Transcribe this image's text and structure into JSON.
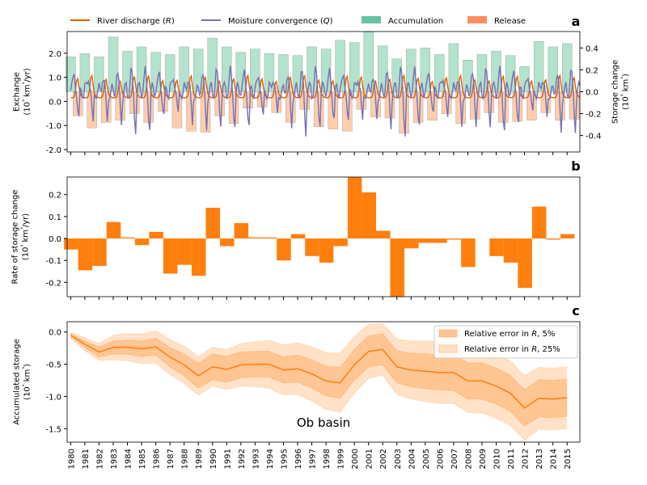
{
  "chart_data": [
    {
      "panel_letter": "a",
      "type": "line",
      "ylabel": "Exchange\n(10³ km³/yr)",
      "ylim": [
        -2.1,
        2.9
      ],
      "yticks": [
        "-2.0",
        "-1.0",
        "0.0",
        "1.0",
        "2.0"
      ],
      "y2label": "Storage change\n(10³ km³)",
      "y2lim": [
        -0.55,
        0.55
      ],
      "y2ticks": [
        "-0.4",
        "-0.2",
        "0.0",
        "0.2",
        "0.4"
      ],
      "legend": [
        {
          "label": "River discharge (R)",
          "kind": "line",
          "color": "#d95f02"
        },
        {
          "label": "Moisture convergence (Q)",
          "kind": "line",
          "color": "#7570b3"
        },
        {
          "label": "Accumulation",
          "kind": "patch",
          "color": "#66c2a5"
        },
        {
          "label": "Release",
          "kind": "patch",
          "color": "#fc8d62"
        }
      ],
      "series": [
        {
          "name": "River discharge (R)",
          "note": "monthly seasonal cycle, annual peak ~1.05, winter ~0.15"
        },
        {
          "name": "Moisture convergence (Q)",
          "note": "monthly seasonal cycle, spring peak ~1.3, summer minimum ~-1.5"
        },
        {
          "name": "Accumulation",
          "axis": "right",
          "values": [
            0.32,
            0.35,
            0.32,
            0.5,
            0.37,
            0.41,
            0.36,
            0.34,
            0.41,
            0.39,
            0.49,
            0.41,
            0.36,
            0.39,
            0.35,
            0.34,
            0.33,
            0.41,
            0.39,
            0.47,
            0.45,
            0.55,
            0.42,
            0.3,
            0.39,
            0.4,
            0.34,
            0.44,
            0.29,
            0.34,
            0.37,
            0.33,
            0.23,
            0.46,
            0.41,
            0.44
          ]
        },
        {
          "name": "Release",
          "axis": "right",
          "values": [
            -0.22,
            -0.33,
            -0.28,
            -0.26,
            -0.2,
            -0.28,
            -0.18,
            -0.33,
            -0.36,
            -0.37,
            -0.22,
            -0.29,
            -0.15,
            -0.14,
            -0.19,
            -0.28,
            -0.16,
            -0.32,
            -0.34,
            -0.36,
            -0.16,
            -0.23,
            -0.24,
            -0.38,
            -0.28,
            -0.26,
            -0.2,
            -0.29,
            -0.25,
            -0.19,
            -0.28,
            -0.27,
            -0.26,
            -0.19,
            -0.26,
            -0.25
          ]
        }
      ]
    },
    {
      "panel_letter": "b",
      "type": "bar",
      "ylabel": "Rate of storage change\n(10³ km³/yr)",
      "ylim": [
        -0.265,
        0.28
      ],
      "yticks": [
        "-0.2",
        "-0.1",
        "0.0",
        "0.1",
        "0.2"
      ],
      "color": "#ff7f0e",
      "categories": [
        1980,
        1981,
        1982,
        1983,
        1984,
        1985,
        1986,
        1987,
        1988,
        1989,
        1990,
        1991,
        1992,
        1993,
        1994,
        1995,
        1996,
        1997,
        1998,
        1999,
        2000,
        2001,
        2002,
        2003,
        2004,
        2005,
        2006,
        2007,
        2008,
        2009,
        2010,
        2011,
        2012,
        2013,
        2014,
        2015
      ],
      "values": [
        -0.05,
        -0.145,
        -0.125,
        0.075,
        0.005,
        -0.03,
        0.03,
        -0.16,
        -0.12,
        -0.17,
        0.14,
        -0.035,
        0.07,
        0.005,
        0.005,
        -0.1,
        0.02,
        -0.08,
        -0.11,
        -0.035,
        0.28,
        0.21,
        0.035,
        -0.265,
        -0.045,
        -0.02,
        -0.02,
        -0.005,
        -0.13,
        0.0,
        -0.08,
        -0.11,
        -0.225,
        0.145,
        -0.005,
        0.02
      ]
    },
    {
      "panel_letter": "c",
      "type": "line",
      "ylabel": "Accumulated storage\n(10³ km³)",
      "ylim": [
        -1.71,
        0.16
      ],
      "yticks": [
        "-1.5",
        "-1.0",
        "-0.5",
        "0.0"
      ],
      "annotation": "Ob basin",
      "x": [
        1980,
        1981,
        1982,
        1983,
        1984,
        1985,
        1986,
        1987,
        1988,
        1989,
        1990,
        1991,
        1992,
        1993,
        1994,
        1995,
        1996,
        1997,
        1998,
        1999,
        2000,
        2001,
        2002,
        2003,
        2004,
        2005,
        2006,
        2007,
        2008,
        2009,
        2010,
        2011,
        2012,
        2013,
        2014,
        2015
      ],
      "xticks": [
        "1980",
        "1981",
        "1982",
        "1983",
        "1984",
        "1985",
        "1986",
        "1987",
        "1988",
        "1989",
        "1990",
        "1991",
        "1992",
        "1993",
        "1994",
        "1995",
        "1996",
        "1997",
        "1998",
        "1999",
        "2000",
        "2001",
        "2002",
        "2003",
        "2004",
        "2005",
        "2006",
        "2007",
        "2008",
        "2009",
        "2010",
        "2011",
        "2012",
        "2013",
        "2014",
        "2015"
      ],
      "series": [
        {
          "name": "Accumulated storage",
          "color": "#ff7f0e",
          "values": [
            -0.05,
            -0.19,
            -0.31,
            -0.24,
            -0.235,
            -0.26,
            -0.23,
            -0.39,
            -0.51,
            -0.68,
            -0.54,
            -0.58,
            -0.51,
            -0.5,
            -0.5,
            -0.59,
            -0.57,
            -0.65,
            -0.76,
            -0.79,
            -0.51,
            -0.3,
            -0.27,
            -0.54,
            -0.59,
            -0.61,
            -0.63,
            -0.63,
            -0.76,
            -0.76,
            -0.84,
            -0.95,
            -1.18,
            -1.03,
            -1.04,
            -1.02
          ]
        },
        {
          "name": "Relative error in R, 5%",
          "kind": "band",
          "color": "#ffbb78",
          "half_width": [
            0.02,
            0.05,
            0.08,
            0.1,
            0.11,
            0.12,
            0.13,
            0.15,
            0.17,
            0.19,
            0.2,
            0.2,
            0.2,
            0.2,
            0.2,
            0.2,
            0.21,
            0.22,
            0.23,
            0.24,
            0.24,
            0.24,
            0.24,
            0.25,
            0.26,
            0.27,
            0.27,
            0.28,
            0.28,
            0.28,
            0.28,
            0.28,
            0.28,
            0.29,
            0.29,
            0.29
          ]
        },
        {
          "name": "Relative error in R, 25%",
          "kind": "band",
          "color": "#ffdfc0",
          "half_width": [
            0.05,
            0.1,
            0.13,
            0.19,
            0.21,
            0.23,
            0.25,
            0.27,
            0.29,
            0.3,
            0.3,
            0.31,
            0.33,
            0.35,
            0.37,
            0.39,
            0.4,
            0.42,
            0.44,
            0.46,
            0.44,
            0.42,
            0.4,
            0.43,
            0.45,
            0.47,
            0.48,
            0.48,
            0.49,
            0.5,
            0.5,
            0.5,
            0.5,
            0.48,
            0.48,
            0.48
          ]
        }
      ],
      "legend": [
        {
          "label": "Relative error in R, 5%"
        },
        {
          "label": "Relative error in R, 25%"
        }
      ]
    }
  ]
}
